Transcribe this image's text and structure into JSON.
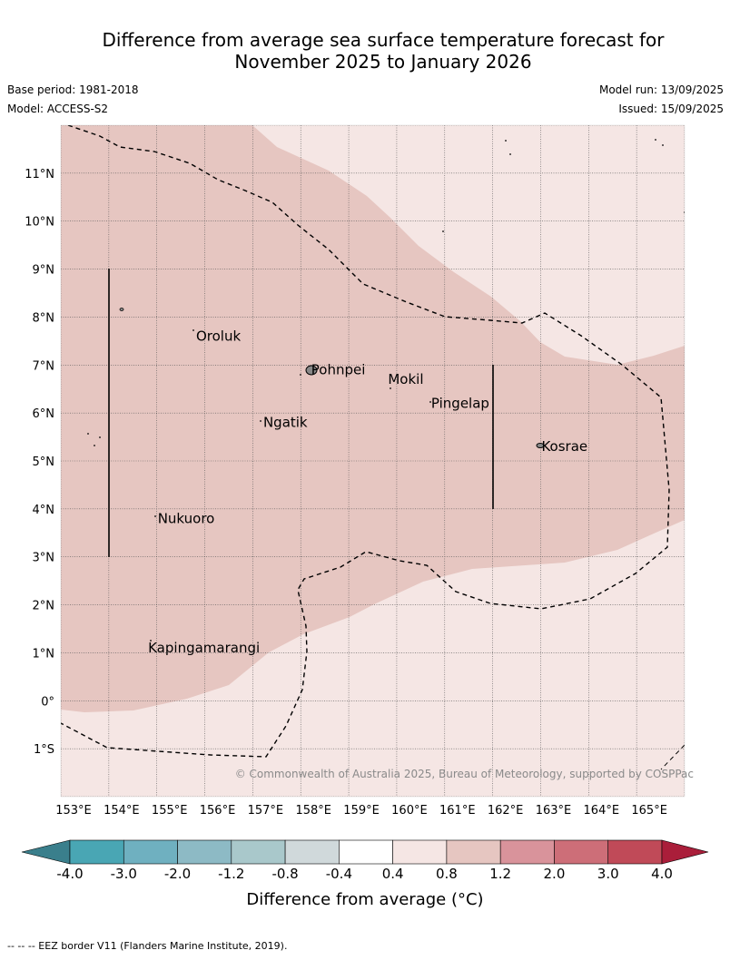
{
  "title": {
    "line1": "Difference from average sea surface temperature forecast for",
    "line2": "November 2025 to January 2026"
  },
  "meta": {
    "base_period": "Base period: 1981-2018",
    "model": "Model: ACCESS-S2",
    "model_run": "Model run: 13/09/2025",
    "issued": "Issued: 15/09/2025"
  },
  "map": {
    "lon_range": [
      153,
      166
    ],
    "lat_range": [
      -2,
      12
    ],
    "lon_ticks": [
      "153°E",
      "154°E",
      "155°E",
      "156°E",
      "157°E",
      "158°E",
      "159°E",
      "160°E",
      "161°E",
      "162°E",
      "163°E",
      "164°E",
      "165°E"
    ],
    "lat_ticks": [
      "11°N",
      "10°N",
      "9°N",
      "8°N",
      "7°N",
      "6°N",
      "5°N",
      "4°N",
      "3°N",
      "2°N",
      "1°N",
      "0°",
      "1°S"
    ],
    "places": [
      {
        "name": "Oroluk",
        "lon": 155.8,
        "lat": 7.6
      },
      {
        "name": "Pohnpei",
        "lon": 158.2,
        "lat": 6.9
      },
      {
        "name": "Mokil",
        "lon": 159.8,
        "lat": 6.7
      },
      {
        "name": "Pingelap",
        "lon": 160.7,
        "lat": 6.2
      },
      {
        "name": "Ngatik",
        "lon": 157.2,
        "lat": 5.8
      },
      {
        "name": "Kosrae",
        "lon": 163.0,
        "lat": 5.3
      },
      {
        "name": "Nukuoro",
        "lon": 155.0,
        "lat": 3.8
      },
      {
        "name": "Kapingamarangi",
        "lon": 154.8,
        "lat": 1.1
      }
    ],
    "copyright": "© Commonwealth of Australia 2025, Bureau of Meteorology, supported by COSPPac"
  },
  "colorbar": {
    "labels": [
      "-4.0",
      "-3.0",
      "-2.0",
      "-1.2",
      "-0.8",
      "-0.4",
      "0.4",
      "0.8",
      "1.2",
      "2.0",
      "3.0",
      "4.0"
    ],
    "colors": [
      "#49a6b4",
      "#6fb0c0",
      "#8dbac5",
      "#a9c8cb",
      "#d0d9db",
      "#ffffff",
      "#f5e6e4",
      "#e6c6c1",
      "#d9939b",
      "#cd6e78",
      "#c04a58"
    ],
    "under_color": "#3a7f8c",
    "over_color": "#aa1e3a",
    "title": "Difference from average (°C)"
  },
  "footnote": "-- -- -- EEZ border V11 (Flanders Marine Institute, 2019)."
}
